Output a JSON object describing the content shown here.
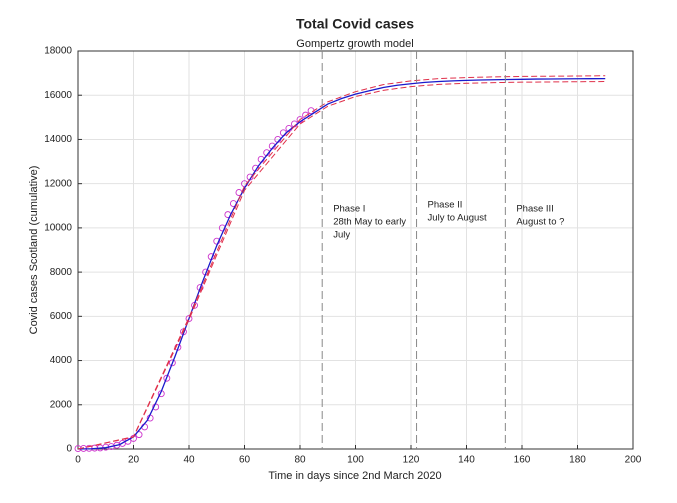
{
  "chart_data": {
    "type": "line",
    "title": "Total Covid cases",
    "subtitle": "Gompertz growth model",
    "x_label": "Time in days since 2nd March 2020",
    "y_label": "Covid cases Scotland (cumulative)",
    "xlim": [
      0,
      200
    ],
    "xticks": [
      0,
      20,
      40,
      60,
      80,
      100,
      120,
      140,
      160,
      180,
      200
    ],
    "ylim": [
      0,
      18000
    ],
    "yticks": [
      0,
      2000,
      4000,
      6000,
      8000,
      10000,
      12000,
      14000,
      16000,
      18000
    ],
    "grid": true,
    "series": [
      {
        "kind": "markers",
        "color": "#cc33cc",
        "x": [
          0,
          2,
          4,
          6,
          8,
          10,
          12,
          14,
          16,
          18,
          20,
          22,
          24,
          26,
          28,
          30,
          32,
          34,
          36,
          38,
          40,
          42,
          44,
          46,
          48,
          50,
          52,
          54,
          56,
          58,
          60,
          62,
          64,
          66,
          68,
          70,
          72,
          74,
          76,
          78,
          80,
          82,
          84
        ],
        "values": [
          20,
          25,
          30,
          40,
          50,
          80,
          110,
          170,
          250,
          350,
          480,
          650,
          1000,
          1400,
          1900,
          2500,
          3200,
          3900,
          4600,
          5300,
          5900,
          6500,
          7300,
          8000,
          8700,
          9400,
          10000,
          10600,
          11100,
          11600,
          12000,
          12300,
          12700,
          13100,
          13400,
          13700,
          14000,
          14300,
          14500,
          14700,
          14900,
          15100,
          15300
        ]
      },
      {
        "kind": "line",
        "color": "#1a1acc",
        "x": [
          0,
          5,
          10,
          15,
          20,
          25,
          30,
          35,
          40,
          45,
          50,
          55,
          60,
          65,
          70,
          75,
          80,
          85,
          90,
          95,
          100,
          105,
          110,
          115,
          120,
          125,
          130,
          135,
          140,
          145,
          150,
          155,
          160,
          165,
          170,
          175,
          180,
          185,
          190
        ],
        "values": [
          0,
          10,
          60,
          200,
          550,
          1300,
          2600,
          4200,
          5900,
          7600,
          9200,
          10600,
          11800,
          12800,
          13600,
          14300,
          14800,
          15200,
          15600,
          15850,
          16050,
          16200,
          16350,
          16450,
          16520,
          16580,
          16620,
          16650,
          16670,
          16690,
          16700,
          16710,
          16720,
          16730,
          16735,
          16740,
          16745,
          16748,
          16750
        ]
      },
      {
        "kind": "dashed",
        "color": "#e0304a",
        "x": [
          0,
          20,
          40,
          60,
          80,
          90,
          100,
          110,
          120,
          130,
          140,
          150,
          160,
          170,
          180,
          190
        ],
        "values": [
          0,
          560,
          5950,
          11900,
          14900,
          15700,
          16160,
          16480,
          16650,
          16750,
          16800,
          16830,
          16850,
          16860,
          16870,
          16880
        ]
      },
      {
        "kind": "dashed",
        "color": "#e0304a",
        "x": [
          0,
          20,
          40,
          60,
          80,
          90,
          100,
          110,
          120,
          130,
          140,
          150,
          160,
          170,
          180,
          190
        ],
        "values": [
          0,
          540,
          5850,
          11700,
          14700,
          15500,
          15940,
          16220,
          16390,
          16490,
          16540,
          16570,
          16590,
          16600,
          16610,
          16620
        ]
      }
    ],
    "vlines": [
      88,
      122,
      154
    ],
    "annotations": [
      [
        "Phase I",
        "28th May to early",
        "July"
      ],
      [
        "Phase II",
        "July to August"
      ],
      [
        "Phase III",
        "August to ?"
      ]
    ]
  }
}
